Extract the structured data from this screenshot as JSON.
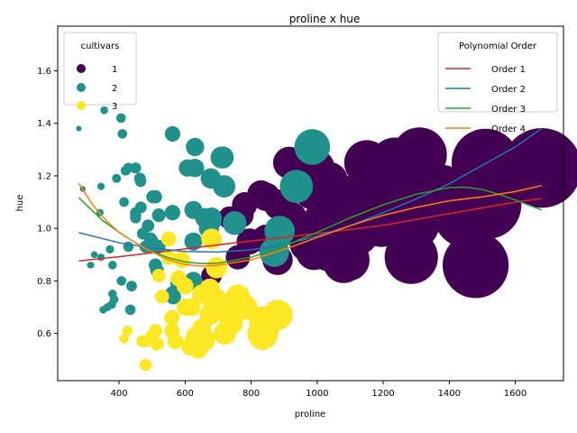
{
  "chart_data": {
    "type": "scatter",
    "title": "proline x hue",
    "xlabel": "proline",
    "ylabel": "hue",
    "xlim": [
      214,
      1746
    ],
    "ylim": [
      0.42,
      1.77
    ],
    "xticks": [
      400,
      600,
      800,
      1000,
      1200,
      1400,
      1600
    ],
    "yticks": [
      0.6,
      0.8,
      1.0,
      1.2,
      1.4,
      1.6
    ],
    "grid": false,
    "size_encodes": "proline (larger points = higher proline)",
    "point_legend": {
      "title": "cultivars",
      "placement": "top-left",
      "entries": [
        {
          "label": "1",
          "color": "#440154"
        },
        {
          "label": "2",
          "color": "#21918c"
        },
        {
          "label": "3",
          "color": "#fde725"
        }
      ]
    },
    "line_legend": {
      "title": "Polynomial Order",
      "placement": "top-right",
      "entries": [
        {
          "label": "Order 1",
          "color": "#d62728"
        },
        {
          "label": "Order 2",
          "color": "#1f77b4"
        },
        {
          "label": "Order 3",
          "color": "#2ca02c"
        },
        {
          "label": "Order 4",
          "color": "#ff7f0e"
        }
      ]
    },
    "fits": [
      {
        "label": "Order 1",
        "color": "#d62728",
        "points": [
          [
            278,
            0.876
          ],
          [
            400,
            0.892
          ],
          [
            600,
            0.922
          ],
          [
            800,
            0.952
          ],
          [
            1000,
            0.98
          ],
          [
            1200,
            1.012
          ],
          [
            1400,
            1.056
          ],
          [
            1600,
            1.1
          ],
          [
            1680,
            1.114
          ]
        ]
      },
      {
        "label": "Order 2",
        "color": "#1f77b4",
        "points": [
          [
            278,
            0.984
          ],
          [
            400,
            0.945
          ],
          [
            500,
            0.925
          ],
          [
            600,
            0.912
          ],
          [
            700,
            0.91
          ],
          [
            800,
            0.918
          ],
          [
            900,
            0.938
          ],
          [
            1000,
            0.97
          ],
          [
            1100,
            1.01
          ],
          [
            1200,
            1.06
          ],
          [
            1300,
            1.112
          ],
          [
            1400,
            1.17
          ],
          [
            1500,
            1.24
          ],
          [
            1600,
            1.31
          ],
          [
            1680,
            1.38
          ]
        ]
      },
      {
        "label": "Order 3",
        "color": "#2ca02c",
        "points": [
          [
            278,
            1.117
          ],
          [
            350,
            1.03
          ],
          [
            400,
            0.985
          ],
          [
            450,
            0.945
          ],
          [
            500,
            0.912
          ],
          [
            550,
            0.888
          ],
          [
            600,
            0.872
          ],
          [
            650,
            0.866
          ],
          [
            700,
            0.868
          ],
          [
            800,
            0.89
          ],
          [
            900,
            0.932
          ],
          [
            1000,
            0.985
          ],
          [
            1100,
            1.04
          ],
          [
            1200,
            1.09
          ],
          [
            1300,
            1.13
          ],
          [
            1400,
            1.155
          ],
          [
            1450,
            1.157
          ],
          [
            1500,
            1.148
          ],
          [
            1550,
            1.13
          ],
          [
            1600,
            1.108
          ],
          [
            1680,
            1.07
          ]
        ]
      },
      {
        "label": "Order 4",
        "color": "#ff7f0e",
        "points": [
          [
            278,
            1.172
          ],
          [
            320,
            1.09
          ],
          [
            360,
            1.03
          ],
          [
            400,
            0.985
          ],
          [
            450,
            0.945
          ],
          [
            500,
            0.91
          ],
          [
            550,
            0.88
          ],
          [
            600,
            0.862
          ],
          [
            650,
            0.856
          ],
          [
            700,
            0.86
          ],
          [
            800,
            0.88
          ],
          [
            900,
            0.92
          ],
          [
            1000,
            0.965
          ],
          [
            1100,
            1.01
          ],
          [
            1200,
            1.05
          ],
          [
            1300,
            1.08
          ],
          [
            1400,
            1.105
          ],
          [
            1500,
            1.12
          ],
          [
            1600,
            1.14
          ],
          [
            1680,
            1.163
          ]
        ]
      }
    ],
    "series": [
      {
        "name": "1",
        "color": "#440154",
        "points": [
          [
            1065,
            1.08
          ],
          [
            1050,
            1.05
          ],
          [
            1185,
            1.03
          ],
          [
            1480,
            0.86
          ],
          [
            735,
            1.04
          ],
          [
            1450,
            1.05
          ],
          [
            1290,
            1.02
          ],
          [
            1295,
            1.06
          ],
          [
            1045,
            1.08
          ],
          [
            1045,
            1.01
          ],
          [
            1510,
            1.25
          ],
          [
            1280,
            1.17
          ],
          [
            1320,
            1.15
          ],
          [
            1150,
            1.25
          ],
          [
            1547,
            1.2
          ],
          [
            1310,
            1.28
          ],
          [
            1280,
            1.07
          ],
          [
            1130,
            1.13
          ],
          [
            1680,
            1.23
          ],
          [
            845,
            0.96
          ],
          [
            780,
            1.09
          ],
          [
            770,
            1.05
          ],
          [
            1035,
            1.18
          ],
          [
            1015,
            1.03
          ],
          [
            845,
            1.12
          ],
          [
            830,
            1.13
          ],
          [
            1195,
            1.02
          ],
          [
            1285,
            0.89
          ],
          [
            915,
            1.25
          ],
          [
            1035,
            0.91
          ],
          [
            1285,
            1.16
          ],
          [
            1515,
            1.09
          ],
          [
            990,
            0.91
          ],
          [
            1235,
            1.25
          ],
          [
            1095,
            0.88
          ],
          [
            920,
            1.04
          ],
          [
            880,
            0.88
          ],
          [
            1105,
            1.11
          ],
          [
            1020,
            1.03
          ],
          [
            760,
            0.89
          ],
          [
            795,
            0.95
          ],
          [
            1035,
            1.08
          ],
          [
            1095,
            1.06
          ],
          [
            680,
            0.82
          ],
          [
            885,
            1.09
          ],
          [
            1080,
            0.87
          ],
          [
            1065,
            1.1
          ],
          [
            985,
            1.14
          ],
          [
            1060,
            1.07
          ],
          [
            1260,
            1.12
          ],
          [
            1150,
            1.12
          ],
          [
            1265,
            1.24
          ],
          [
            1190,
            1.09
          ],
          [
            1375,
            1.13
          ],
          [
            1060,
            0.96
          ],
          [
            1120,
            0.98
          ],
          [
            970,
            0.94
          ],
          [
            1270,
            1.07
          ],
          [
            1285,
            1.17
          ],
          [
            998,
            1.23
          ],
          [
            1030,
            1.05
          ],
          [
            1265,
            1.12
          ]
        ]
      },
      {
        "name": "2",
        "color": "#21918c",
        "points": [
          [
            520,
            1.05
          ],
          [
            680,
            1.04
          ],
          [
            450,
            1.23
          ],
          [
            630,
            1.23
          ],
          [
            420,
            1.22
          ],
          [
            355,
            1.45
          ],
          [
            678,
            1.19
          ],
          [
            502,
            1.12
          ],
          [
            510,
            1.12
          ],
          [
            750,
            1.02
          ],
          [
            718,
            1.16
          ],
          [
            870,
            0.91
          ],
          [
            410,
            1.36
          ],
          [
            472,
            0.98
          ],
          [
            985,
            1.31
          ],
          [
            886,
            0.99
          ],
          [
            428,
            1.23
          ],
          [
            392,
            1.19
          ],
          [
            500,
            0.95
          ],
          [
            450,
            1.05
          ],
          [
            463,
            1.19
          ],
          [
            278,
            1.38
          ],
          [
            714,
            1.27
          ],
          [
            630,
            1.31
          ],
          [
            515,
            0.84
          ],
          [
            520,
            0.93
          ],
          [
            450,
            1.04
          ],
          [
            495,
            0.96
          ],
          [
            562,
            1.06
          ],
          [
            680,
            1.04
          ],
          [
            625,
            0.95
          ],
          [
            480,
            0.93
          ],
          [
            450,
            1.06
          ],
          [
            495,
            0.96
          ],
          [
            290,
            1.15
          ],
          [
            345,
            1.16
          ],
          [
            937,
            1.16
          ],
          [
            625,
            0.8
          ],
          [
            428,
            0.93
          ],
          [
            660,
            1.04
          ],
          [
            406,
            1.42
          ],
          [
            710,
            1.27
          ],
          [
            562,
            1.36
          ],
          [
            438,
            0.78
          ],
          [
            415,
            1.1
          ],
          [
            672,
            1.0
          ],
          [
            315,
            0.86
          ],
          [
            510,
            0.86
          ],
          [
            488,
            1.01
          ],
          [
            312,
            0.86
          ],
          [
            680,
            1.03
          ],
          [
            562,
            0.75
          ],
          [
            325,
            0.9
          ],
          [
            607,
            1.23
          ],
          [
            434,
            0.69
          ],
          [
            385,
            0.73
          ],
          [
            407,
            0.8
          ],
          [
            495,
            0.93
          ],
          [
            345,
            0.89
          ],
          [
            372,
            0.92
          ],
          [
            564,
            0.74
          ],
          [
            625,
            1.07
          ],
          [
            465,
            1.18
          ],
          [
            365,
            0.7
          ],
          [
            380,
            0.86
          ],
          [
            380,
            0.75
          ],
          [
            378,
            0.71
          ],
          [
            352,
            0.69
          ],
          [
            466,
            1.08
          ],
          [
            342,
            1.06
          ],
          [
            580,
            0.79
          ]
        ]
      },
      {
        "name": "3",
        "color": "#fde725",
        "points": [
          [
            630,
            0.59
          ],
          [
            530,
            0.74
          ],
          [
            560,
            0.66
          ],
          [
            600,
            0.78
          ],
          [
            650,
            0.75
          ],
          [
            695,
            0.85
          ],
          [
            720,
            0.6
          ],
          [
            515,
            0.56
          ],
          [
            580,
            0.81
          ],
          [
            590,
            0.88
          ],
          [
            600,
            0.7
          ],
          [
            780,
            0.7
          ],
          [
            520,
            0.82
          ],
          [
            550,
            0.89
          ],
          [
            855,
            0.65
          ],
          [
            830,
            0.6
          ],
          [
            415,
            0.58
          ],
          [
            625,
            0.57
          ],
          [
            650,
            0.62
          ],
          [
            550,
            0.96
          ],
          [
            500,
            0.59
          ],
          [
            480,
            0.48
          ],
          [
            425,
            0.61
          ],
          [
            675,
            0.67
          ],
          [
            640,
            0.54
          ],
          [
            725,
            0.68
          ],
          [
            480,
            0.57
          ],
          [
            880,
            0.67
          ],
          [
            660,
            0.57
          ],
          [
            620,
            0.7
          ],
          [
            740,
            0.64
          ],
          [
            760,
            0.74
          ],
          [
            835,
            0.59
          ],
          [
            840,
            0.6
          ],
          [
            560,
            0.61
          ],
          [
            680,
            0.96
          ],
          [
            570,
            0.57
          ],
          [
            675,
            0.77
          ],
          [
            615,
            0.55
          ],
          [
            685,
            0.72
          ],
          [
            510,
            0.61
          ],
          [
            470,
            0.57
          ],
          [
            660,
            0.58
          ],
          [
            740,
            0.67
          ],
          [
            750,
            0.7
          ],
          [
            835,
            0.65
          ],
          [
            695,
            0.73
          ]
        ]
      }
    ]
  }
}
